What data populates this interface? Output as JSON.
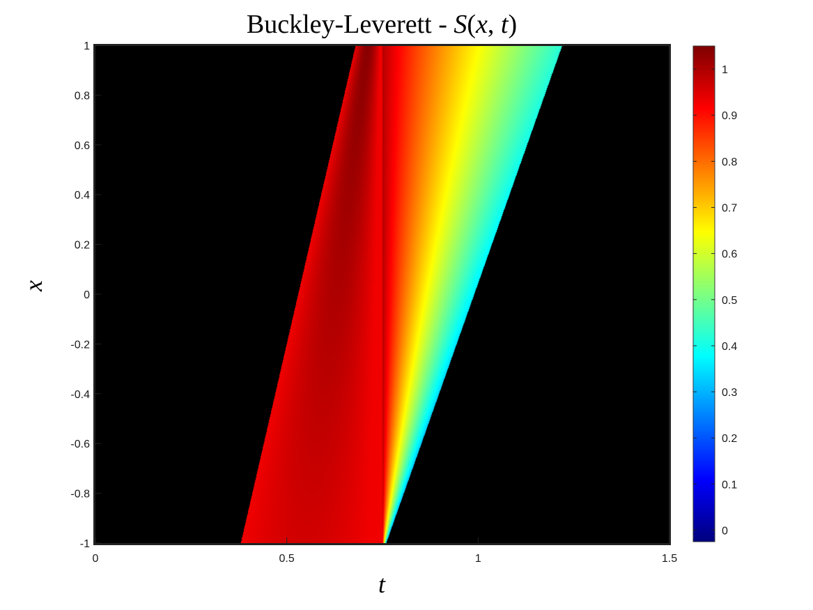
{
  "chart_data": {
    "type": "heatmap",
    "title": {
      "prefix": "Buckley-Leverett - ",
      "S": "S",
      "open": "(",
      "x": "x",
      "comma": ", ",
      "t": "t",
      "close": ")"
    },
    "xlabel": "t",
    "ylabel": "x",
    "xlim": [
      0,
      1.5
    ],
    "ylim": [
      -1,
      1
    ],
    "x_ticks": [
      "0",
      "0.5",
      "1",
      "1.5"
    ],
    "y_ticks": [
      "-1",
      "-0.8",
      "-0.6",
      "-0.4",
      "-0.2",
      "0",
      "0.2",
      "0.4",
      "0.6",
      "0.8",
      "1"
    ],
    "colormap": "jet",
    "clim": [
      -0.025,
      1.05
    ],
    "colorbar_ticks": [
      "0",
      "0.1",
      "0.2",
      "0.3",
      "0.4",
      "0.5",
      "0.6",
      "0.7",
      "0.8",
      "0.9",
      "1"
    ],
    "background_value": 0,
    "regions": {
      "shock_start_t": 0.38,
      "shock_end_t": 0.68,
      "peak_value": 1.04,
      "peak_t_at_top": 0.7,
      "rarefaction_left_t_bottom": 0.75,
      "rarefaction_left_t_top": 0.75,
      "rarefaction_top_start_value": 1.0,
      "rarefaction_top_end_value": 0.42,
      "rarefaction_edge_t_top": 1.22,
      "rarefaction_edge_t_bottom": 0.76,
      "rarefaction_edge_value_bottom": 0.3,
      "shock_front_peak_value": 0.7,
      "pre_shock_value": 0.1
    }
  }
}
